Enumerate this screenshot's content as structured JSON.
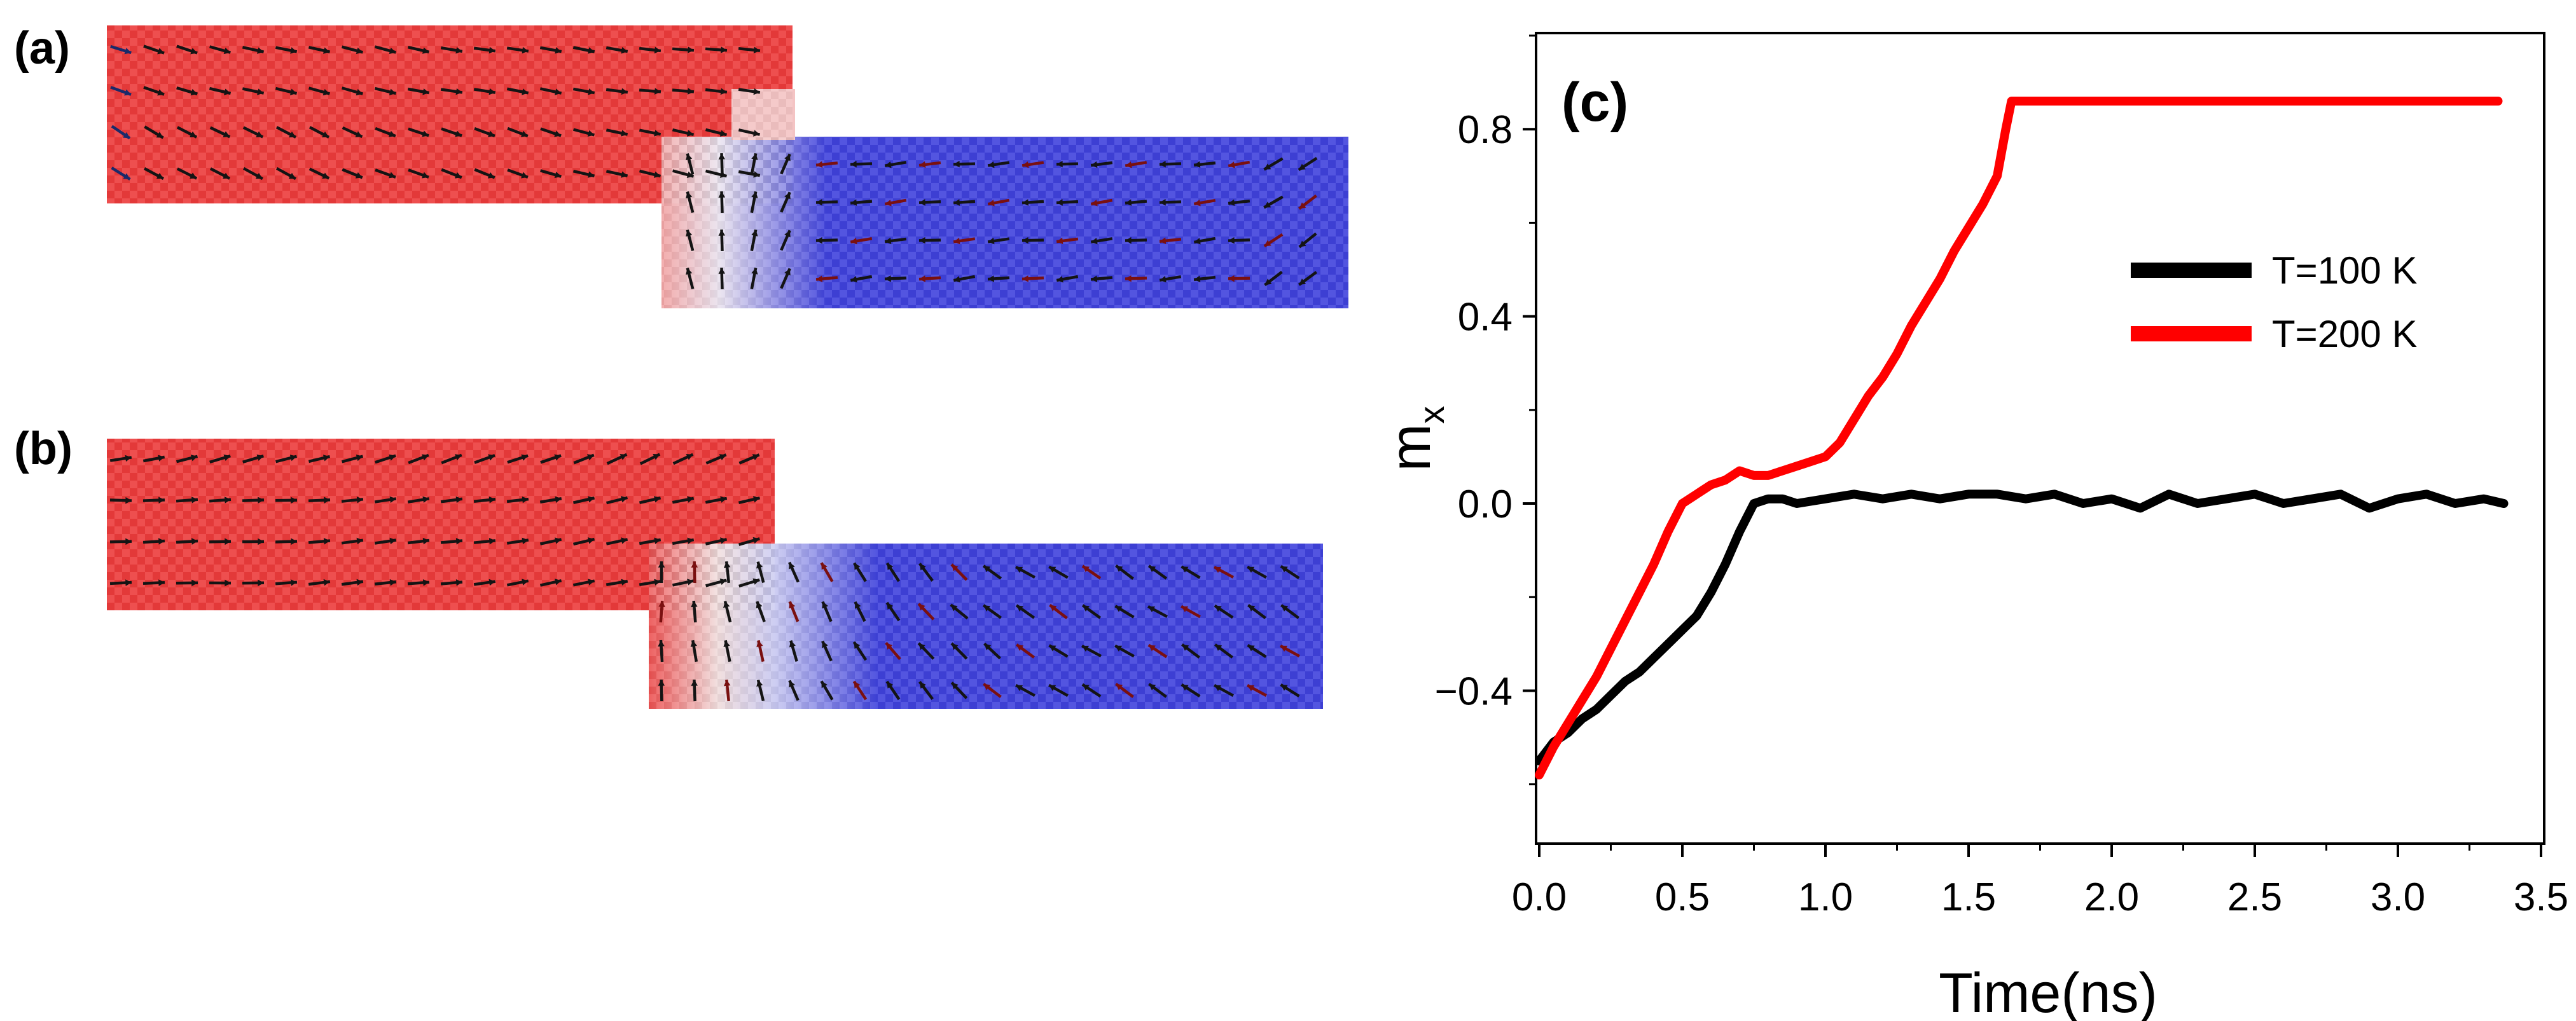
{
  "panels": [
    {
      "label": "(a)",
      "description_colors": {
        "left_domain": "#ec3b3b",
        "right_domain": "#3f42dc",
        "arrow": "#141414",
        "arrow_alt": "#7a1010"
      }
    },
    {
      "label": "(b)",
      "description_colors": {
        "left_domain": "#ec3b3b",
        "right_domain": "#3f42dc",
        "arrow": "#141414",
        "arrow_alt": "#7a1010"
      }
    }
  ],
  "chart_data": {
    "type": "line",
    "panel_label": "(c)",
    "title": "",
    "xlabel": "Time(ns)",
    "ylabel": "m",
    "ylabel_subscript": "x",
    "xlim": [
      0,
      3.5
    ],
    "ylim": [
      -0.72,
      1.0
    ],
    "xticks": [
      0.0,
      0.5,
      1.0,
      1.5,
      2.0,
      2.5,
      3.0,
      3.5
    ],
    "xtick_labels": [
      "0.0",
      "0.5",
      "1.0",
      "1.5",
      "2.0",
      "2.5",
      "3.0",
      "3.5"
    ],
    "yticks": [
      -0.4,
      0.0,
      0.4,
      0.8
    ],
    "ytick_labels": [
      "−0.4",
      "0.0",
      "0.4",
      "0.8"
    ],
    "grid": false,
    "legend_position": "middle-right",
    "series": [
      {
        "name": "T=100 K",
        "color": "#000000",
        "x": [
          0.0,
          0.05,
          0.1,
          0.15,
          0.2,
          0.25,
          0.3,
          0.35,
          0.4,
          0.45,
          0.5,
          0.55,
          0.6,
          0.65,
          0.7,
          0.75,
          0.8,
          0.85,
          0.9,
          1.0,
          1.1,
          1.2,
          1.3,
          1.4,
          1.5,
          1.6,
          1.7,
          1.8,
          1.9,
          2.0,
          2.1,
          2.2,
          2.3,
          2.4,
          2.5,
          2.6,
          2.7,
          2.8,
          2.9,
          3.0,
          3.1,
          3.2,
          3.3,
          3.37
        ],
        "y": [
          -0.55,
          -0.51,
          -0.49,
          -0.46,
          -0.44,
          -0.41,
          -0.38,
          -0.36,
          -0.33,
          -0.3,
          -0.27,
          -0.24,
          -0.19,
          -0.13,
          -0.06,
          0.0,
          0.01,
          0.01,
          0.0,
          0.01,
          0.02,
          0.01,
          0.02,
          0.01,
          0.02,
          0.02,
          0.01,
          0.02,
          0.0,
          0.01,
          -0.01,
          0.02,
          0.0,
          0.01,
          0.02,
          0.0,
          0.01,
          0.02,
          -0.01,
          0.01,
          0.02,
          0.0,
          0.01,
          0.0
        ]
      },
      {
        "name": "T=200 K",
        "color": "#ff0000",
        "x": [
          0.0,
          0.05,
          0.1,
          0.15,
          0.2,
          0.25,
          0.3,
          0.35,
          0.4,
          0.45,
          0.5,
          0.55,
          0.6,
          0.65,
          0.7,
          0.75,
          0.8,
          0.85,
          0.9,
          0.95,
          1.0,
          1.05,
          1.1,
          1.15,
          1.2,
          1.25,
          1.3,
          1.35,
          1.4,
          1.45,
          1.5,
          1.55,
          1.6,
          1.63,
          1.65,
          1.8,
          2.0,
          2.2,
          2.4,
          2.6,
          2.8,
          3.0,
          3.2,
          3.35
        ],
        "y": [
          -0.58,
          -0.52,
          -0.47,
          -0.42,
          -0.37,
          -0.31,
          -0.25,
          -0.19,
          -0.13,
          -0.06,
          0.0,
          0.02,
          0.04,
          0.05,
          0.07,
          0.06,
          0.06,
          0.07,
          0.08,
          0.09,
          0.1,
          0.13,
          0.18,
          0.23,
          0.27,
          0.32,
          0.38,
          0.43,
          0.48,
          0.54,
          0.59,
          0.64,
          0.7,
          0.8,
          0.86,
          0.86,
          0.86,
          0.86,
          0.86,
          0.86,
          0.86,
          0.86,
          0.86,
          0.86
        ]
      }
    ]
  }
}
